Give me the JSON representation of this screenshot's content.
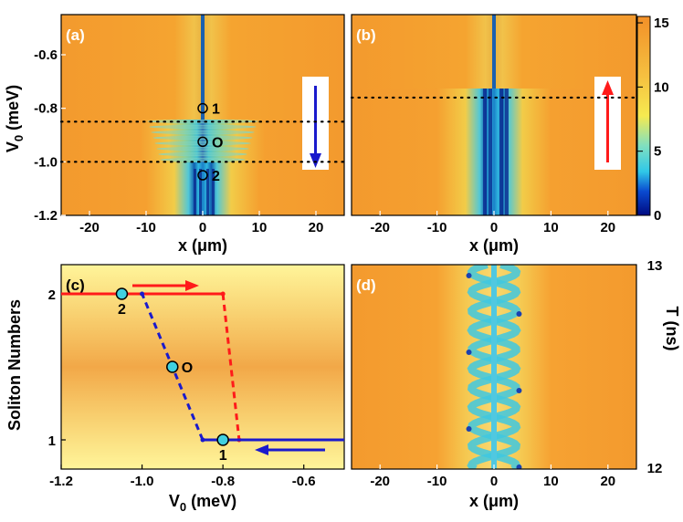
{
  "colors": {
    "orange": "#f39a2e",
    "yellow": "#f4d84a",
    "cyan": "#3ad0e0",
    "blue": "#1030a0",
    "dark": "#000a6a",
    "red": "#ff1a1a",
    "pale": "#fff59a"
  },
  "chart_data": [
    {
      "id": "a",
      "type": "heatmap",
      "panel_label": "(a)",
      "xlabel": "x (μm)",
      "ylabel": "V0 (meV)",
      "ylabel_main": "V",
      "ylabel_sub": "0",
      "ylabel_unit": " (meV)",
      "xlim": [
        -25,
        25
      ],
      "ylim": [
        -1.2,
        -0.45
      ],
      "xticks": [
        -20,
        -10,
        0,
        10,
        20
      ],
      "xtick_labels": [
        "-20",
        "-10",
        "0",
        "10",
        "20"
      ],
      "yticks": [
        -0.6,
        -0.8,
        -1.0,
        -1.2
      ],
      "ytick_labels": [
        "-0.6",
        "-0.8",
        "-1.0",
        "-1.2"
      ],
      "dotted_lines_y": [
        -0.85,
        -1.0
      ],
      "points": [
        {
          "label": "1",
          "x": 0,
          "y": -0.8
        },
        {
          "label": "O",
          "x": 0,
          "y": -0.925
        },
        {
          "label": "2",
          "x": 0,
          "y": -1.05
        }
      ],
      "arrow": "down"
    },
    {
      "id": "b",
      "type": "heatmap",
      "panel_label": "(b)",
      "xlabel": "x (μm)",
      "xlim": [
        -25,
        25
      ],
      "ylim": [
        -1.2,
        -0.45
      ],
      "xticks": [
        -20,
        -10,
        0,
        10,
        20
      ],
      "xtick_labels": [
        "-20",
        "-10",
        "0",
        "10",
        "20"
      ],
      "dotted_lines_y": [
        -0.76
      ],
      "arrow": "up"
    },
    {
      "id": "c",
      "type": "line",
      "panel_label": "(c)",
      "xlabel": "V0 (meV)",
      "xlabel_main": "V",
      "xlabel_sub": "0",
      "xlabel_unit": " (meV)",
      "ylabel": "Soliton Numbers",
      "xlim": [
        -1.2,
        -0.5
      ],
      "ylim": [
        0.8,
        2.2
      ],
      "xticks": [
        -1.2,
        -1.0,
        -0.8,
        -0.6
      ],
      "xtick_labels": [
        "-1.2",
        "-1.0",
        "-0.8",
        "-0.6"
      ],
      "yticks": [
        1,
        2
      ],
      "ytick_labels": [
        "1",
        "2"
      ],
      "series": [
        {
          "name": "forward (red)",
          "color": "#ff1a1a",
          "solid": [
            [
              -1.2,
              2
            ],
            [
              -0.8,
              2
            ]
          ],
          "dashed": [
            [
              -0.8,
              2
            ],
            [
              -0.76,
              1
            ]
          ]
        },
        {
          "name": "backward (blue)",
          "color": "#1a1acc",
          "solid": [
            [
              -0.85,
              1
            ],
            [
              -0.5,
              1
            ]
          ],
          "dashed": [
            [
              -0.85,
              1
            ],
            [
              -1.0,
              2
            ]
          ]
        }
      ],
      "points": [
        {
          "label": "2",
          "x": -1.05,
          "y": 2
        },
        {
          "label": "O",
          "x": -0.925,
          "y": 1.5
        },
        {
          "label": "1",
          "x": -0.8,
          "y": 1
        }
      ]
    },
    {
      "id": "d",
      "type": "heatmap",
      "panel_label": "(d)",
      "xlabel": "x (μm)",
      "ylabel": "T (ns)",
      "xlim": [
        -25,
        25
      ],
      "ylim": [
        12,
        13
      ],
      "xticks": [
        -20,
        -10,
        0,
        10,
        20
      ],
      "xtick_labels": [
        "-20",
        "-10",
        "0",
        "10",
        "20"
      ],
      "yticks": [
        13,
        12
      ],
      "ytick_labels": [
        "13",
        "12"
      ]
    }
  ],
  "colorbar": {
    "min": 0,
    "max": 15.5,
    "ticks": [
      15,
      10,
      5,
      0
    ],
    "tick_labels": [
      "15",
      "10",
      "5",
      "0"
    ]
  }
}
